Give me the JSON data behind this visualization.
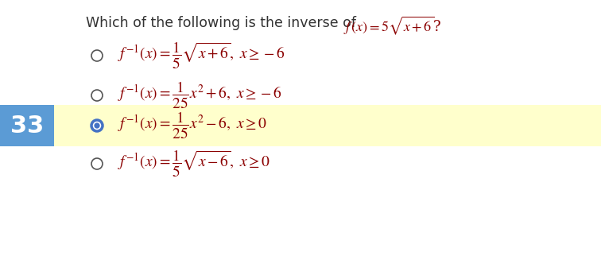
{
  "title_plain": "Which of the following is the inverse of ",
  "title_math": "$f\\,(x) = 5\\sqrt{x+6}$?",
  "title_color": "#333333",
  "title_math_color": "#8B0000",
  "title_fontsize": 12.5,
  "options": [
    {
      "label": "$f^{-1}(x) = \\dfrac{1}{5}\\sqrt{x+6},\\ x \\geq -6$",
      "selected": false
    },
    {
      "label": "$f^{-1}(x) = \\dfrac{1}{25}x^2 + 6,\\ x \\geq -6$",
      "selected": false
    },
    {
      "label": "$f^{-1}(x) = \\dfrac{1}{25}x^2 - 6,\\ x \\geq 0$",
      "selected": true
    },
    {
      "label": "$f^{-1}(x) = \\dfrac{1}{5}\\sqrt{x-6},\\ x \\geq 0$",
      "selected": false
    }
  ],
  "number_label": "33",
  "number_bg_color": "#5B9BD5",
  "number_text_color": "#ffffff",
  "selected_bg_color": "#FFFFCC",
  "radio_selected_color": "#4472C4",
  "radio_unselected_color": "#555555",
  "option_text_color": "#8B0000",
  "bg_color": "#ffffff",
  "fig_width": 7.56,
  "fig_height": 3.22
}
